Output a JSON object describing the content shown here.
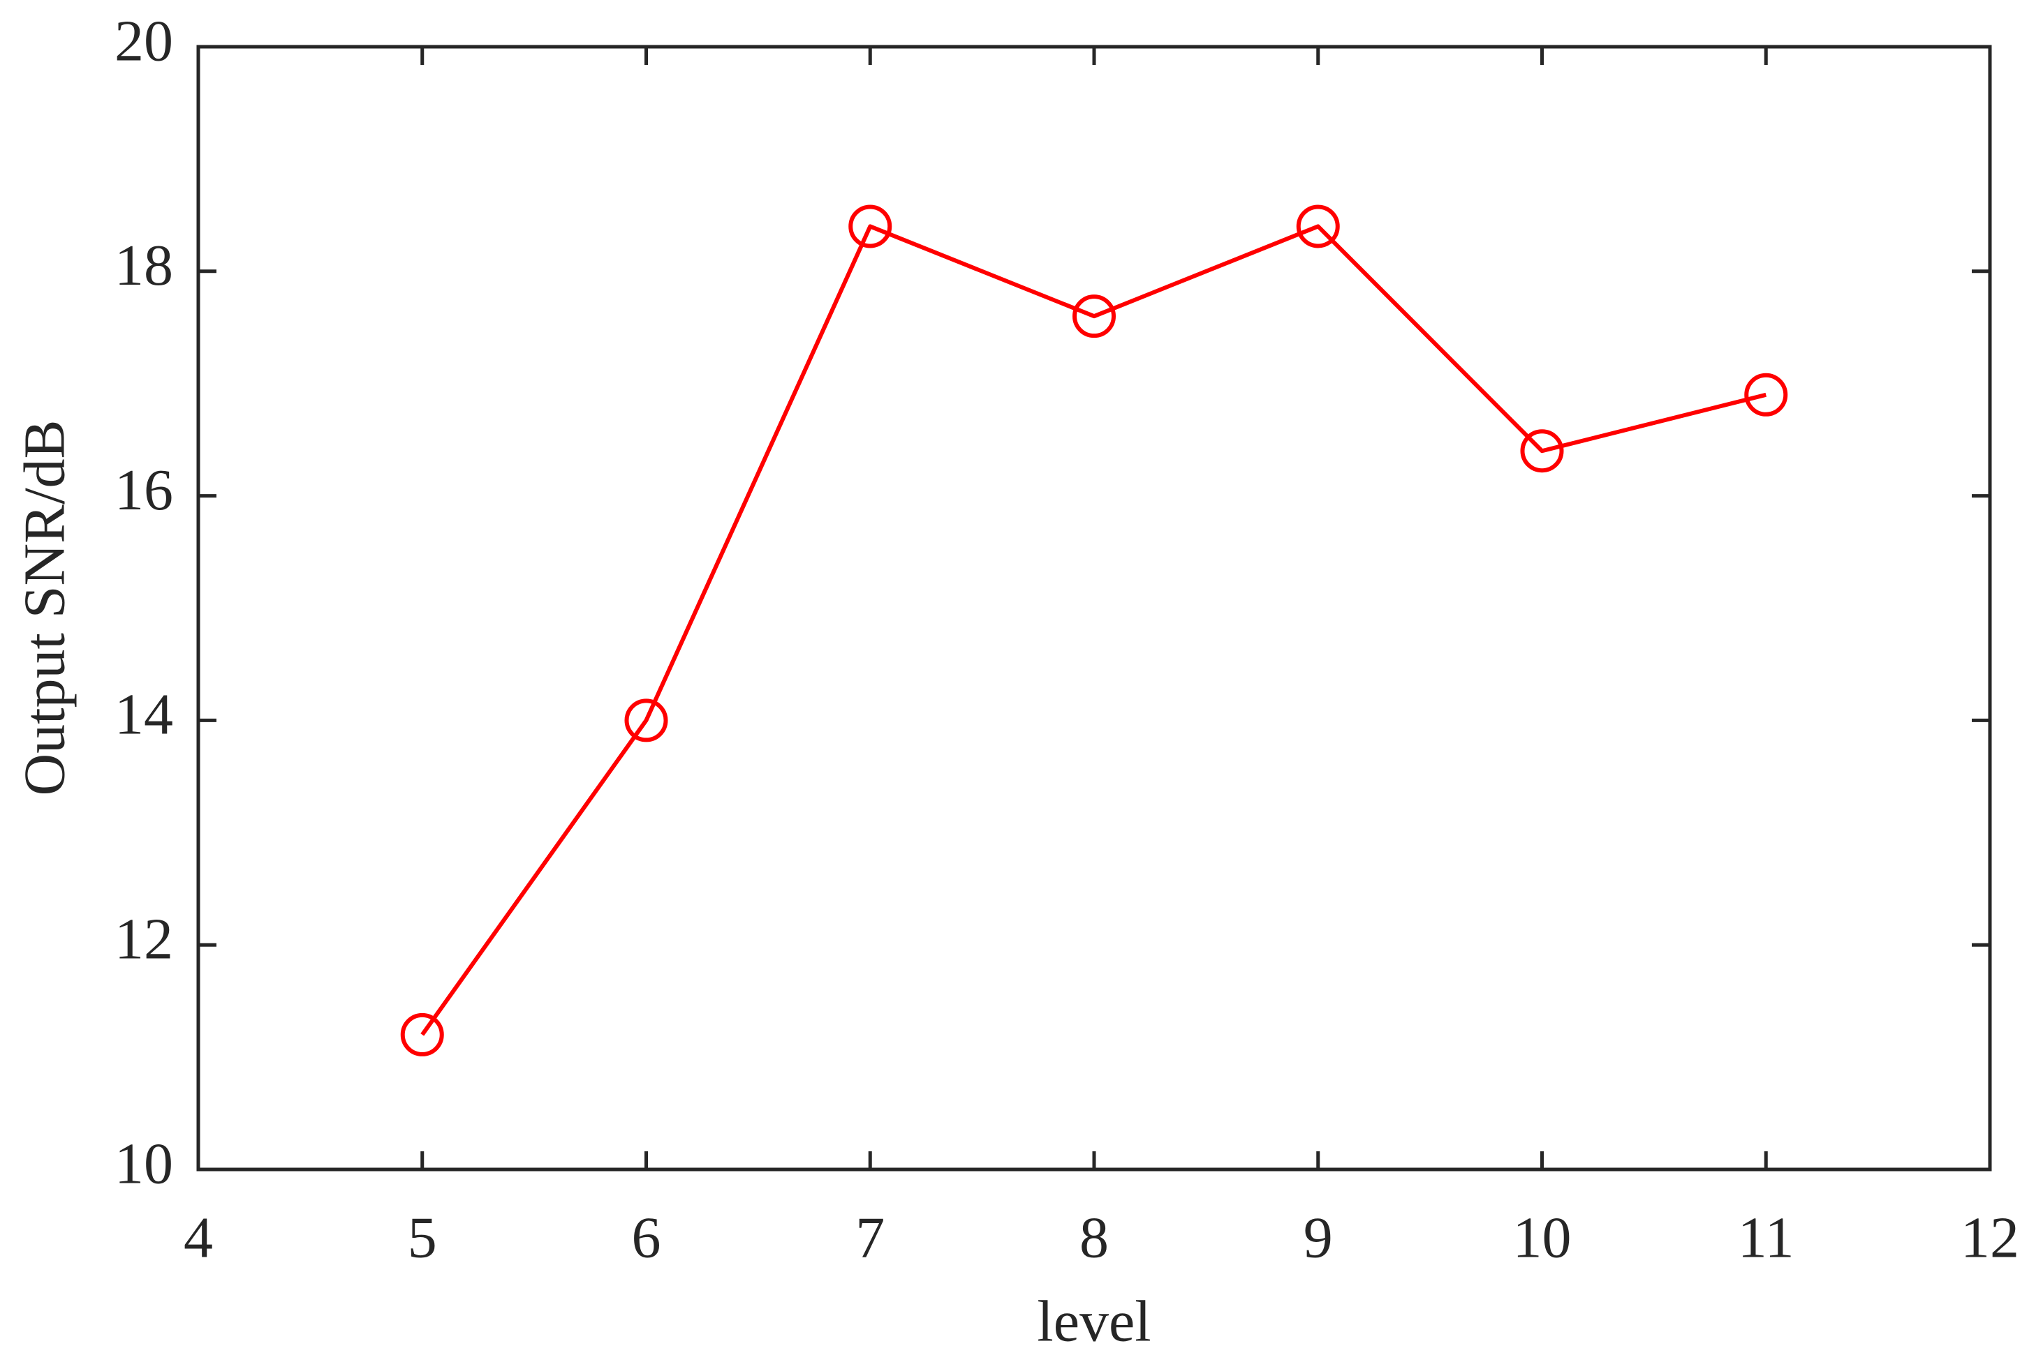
{
  "chart_data": {
    "type": "line",
    "x_label": "level",
    "y_label": "Output SNR/dB",
    "x": [
      5,
      6,
      7,
      8,
      9,
      10,
      11
    ],
    "series": [
      {
        "name": "Output SNR",
        "color": "#ff0000",
        "values": [
          11.2,
          14.0,
          18.4,
          17.6,
          18.4,
          16.4,
          16.9
        ]
      }
    ],
    "xlim": [
      4,
      12
    ],
    "xticks": [
      4,
      5,
      6,
      7,
      8,
      9,
      10,
      11,
      12
    ],
    "ylim": [
      10,
      20
    ],
    "yticks": [
      10,
      12,
      14,
      16,
      18,
      20
    ],
    "grid": false,
    "marker": "circle"
  }
}
